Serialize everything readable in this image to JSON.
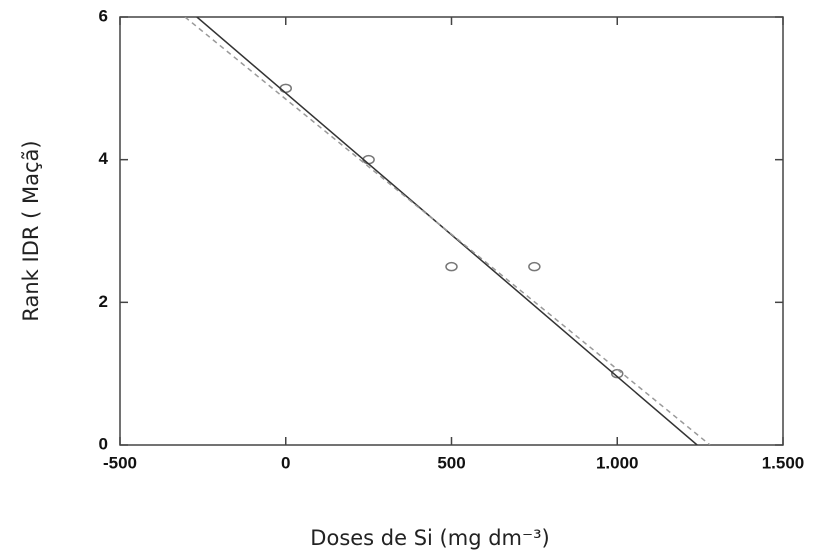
{
  "chart_data": {
    "type": "scatter",
    "xlabel": "Doses de Si (mg dm⁻³)",
    "ylabel": "Rank IDR (  Maçã)",
    "xlim": [
      -500,
      1500
    ],
    "ylim": [
      0,
      6
    ],
    "xticks": [
      -500,
      0,
      500,
      {
        "value": 1000,
        "label": "1.000"
      },
      {
        "value": 1500,
        "label": "1.500"
      }
    ],
    "yticks": [
      0,
      2,
      4,
      6
    ],
    "series": [
      {
        "type": "scatter",
        "color": "#777777",
        "x": [
          0,
          250,
          500,
          750,
          1000
        ],
        "y": [
          5,
          4,
          2.5,
          2.5,
          1
        ]
      },
      {
        "type": "line",
        "color": "#333333",
        "dashed": false,
        "x": [
          -268,
          1241
        ],
        "y": [
          6,
          0
        ]
      },
      {
        "type": "line",
        "color": "#999999",
        "dashed": true,
        "x": [
          -304,
          1280
        ],
        "y": [
          6,
          0
        ]
      }
    ]
  }
}
